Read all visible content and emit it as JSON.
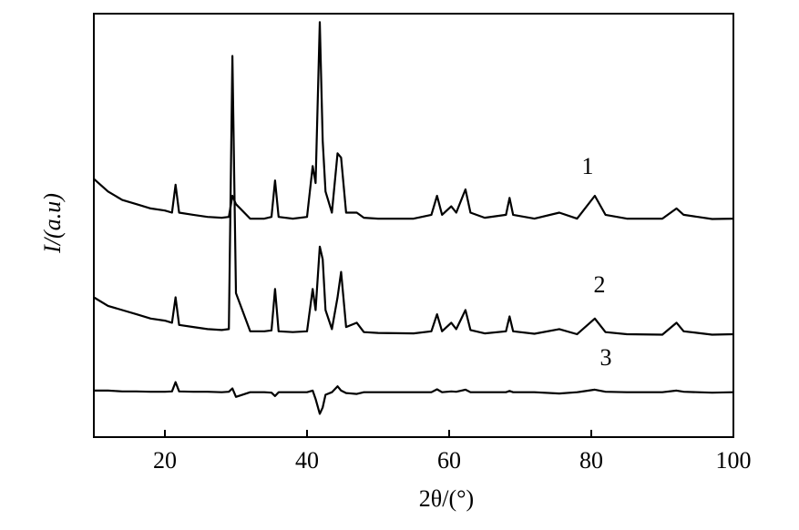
{
  "chart_data": {
    "type": "line",
    "x_label": "2θ/(°)",
    "y_label": "I/(a.u)",
    "xlim": [
      10,
      100
    ],
    "xticks": [
      20,
      40,
      60,
      80,
      100
    ],
    "ylim": [
      0,
      100
    ],
    "x": [
      10,
      12,
      14,
      16,
      18,
      20,
      21,
      21.5,
      22,
      24,
      26,
      28,
      29,
      29.5,
      30,
      32,
      34,
      35,
      35.5,
      36,
      38,
      40,
      40.8,
      41.2,
      41.8,
      42.2,
      42.6,
      43.5,
      44.3,
      44.8,
      45.5,
      47,
      48,
      50,
      55,
      57.5,
      58.3,
      59,
      60.3,
      61,
      62.3,
      63,
      65,
      68,
      68.5,
      69,
      72,
      75.5,
      78,
      80.5,
      82,
      85,
      90,
      92,
      93,
      95,
      97,
      100
    ],
    "series": [
      {
        "name": "1",
        "color": "#000000",
        "values": [
          61,
          58,
          56,
          55,
          54,
          53.5,
          53,
          59.6,
          53,
          52.5,
          52,
          51.8,
          52,
          57,
          55,
          51.6,
          51.6,
          52,
          60.6,
          52,
          51.6,
          52,
          64,
          60,
          98,
          70,
          58,
          53,
          67,
          66,
          53,
          53,
          51.8,
          51.6,
          51.6,
          52.5,
          57,
          52.5,
          54.5,
          53,
          58.5,
          53,
          51.8,
          52.5,
          56.5,
          52.5,
          51.6,
          53,
          51.6,
          57,
          52.5,
          51.6,
          51.6,
          54,
          52.5,
          52,
          51.5,
          51.6
        ]
      },
      {
        "name": "2",
        "color": "#000000",
        "values": [
          33,
          31,
          30,
          29,
          28,
          27.5,
          27,
          33,
          26.5,
          26,
          25.5,
          25.3,
          25.5,
          90,
          34,
          25,
          25,
          25.2,
          35,
          25,
          24.8,
          25,
          35,
          30,
          45,
          42,
          30,
          25.5,
          33,
          39,
          26,
          27,
          24.8,
          24.6,
          24.5,
          25,
          29,
          25,
          27,
          25.5,
          30,
          25.3,
          24.5,
          25,
          28.5,
          25,
          24.4,
          25.5,
          24.3,
          28,
          24.8,
          24.3,
          24.2,
          27,
          25,
          24.6,
          24.2,
          24.3
        ]
      },
      {
        "name": "3",
        "color": "#000000",
        "values": [
          11,
          11,
          10.8,
          10.8,
          10.7,
          10.7,
          10.8,
          13,
          10.8,
          10.7,
          10.7,
          10.6,
          10.7,
          11.5,
          9.5,
          10.6,
          10.6,
          10.5,
          9.7,
          10.6,
          10.6,
          10.6,
          11,
          9,
          5.5,
          7,
          10,
          10.6,
          12,
          11,
          10.4,
          10.2,
          10.6,
          10.6,
          10.6,
          10.6,
          11.3,
          10.6,
          10.8,
          10.7,
          11.2,
          10.6,
          10.6,
          10.6,
          10.9,
          10.6,
          10.6,
          10.3,
          10.6,
          11.2,
          10.7,
          10.6,
          10.6,
          11,
          10.7,
          10.6,
          10.5,
          10.6
        ]
      }
    ]
  }
}
